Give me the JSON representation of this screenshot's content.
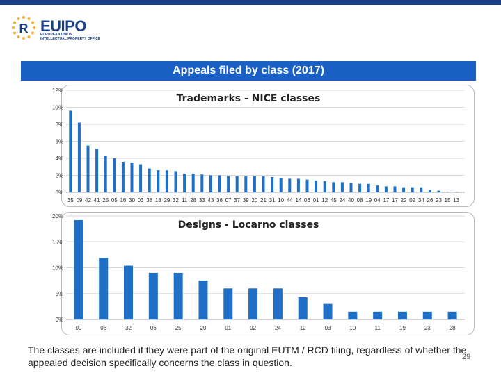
{
  "colors": {
    "bar": "#1f6fc6",
    "grid": "#d9d9d9",
    "title_band": "#1a5fc4",
    "brand": "#1b3f87"
  },
  "logo": {
    "icon": "euipo-star-circle-logo",
    "name": "EUIPO",
    "sub_line1": "EUROPEAN UNION",
    "sub_line2": "INTELLECTUAL PROPERTY OFFICE"
  },
  "slide_title": "Appeals filed by class (2017)",
  "chart_data": [
    {
      "type": "bar",
      "title": "Trademarks - NICE classes",
      "categories": [
        "35",
        "09",
        "42",
        "41",
        "25",
        "05",
        "16",
        "30",
        "03",
        "38",
        "18",
        "29",
        "32",
        "11",
        "28",
        "33",
        "43",
        "36",
        "07",
        "37",
        "39",
        "20",
        "21",
        "31",
        "10",
        "44",
        "14",
        "06",
        "01",
        "12",
        "45",
        "24",
        "40",
        "08",
        "19",
        "04",
        "17",
        "17",
        "22",
        "02",
        "34",
        "26",
        "23",
        "15",
        "13"
      ],
      "values": [
        9.6,
        8.2,
        5.5,
        5.1,
        4.3,
        4.0,
        3.6,
        3.5,
        3.3,
        2.8,
        2.6,
        2.6,
        2.5,
        2.2,
        2.2,
        2.1,
        2.0,
        2.0,
        1.9,
        1.9,
        1.9,
        1.9,
        1.9,
        1.8,
        1.7,
        1.6,
        1.6,
        1.5,
        1.4,
        1.3,
        1.2,
        1.2,
        1.1,
        1.0,
        1.0,
        0.8,
        0.7,
        0.7,
        0.6,
        0.6,
        0.6,
        0.3,
        0.2,
        0.05,
        0.05
      ],
      "ylim": [
        0,
        12
      ],
      "yticks": [
        "0%",
        "2%",
        "4%",
        "6%",
        "8%",
        "10%",
        "12%"
      ],
      "grid": true,
      "xlabel": "",
      "ylabel": ""
    },
    {
      "type": "bar",
      "title": "Designs - Locarno classes",
      "categories": [
        "09",
        "08",
        "32",
        "06",
        "25",
        "20",
        "01",
        "02",
        "24",
        "12",
        "03",
        "10",
        "11",
        "19",
        "23",
        "28"
      ],
      "values": [
        19.2,
        11.9,
        10.4,
        9.0,
        9.0,
        7.5,
        6.0,
        6.0,
        6.0,
        4.3,
        3.0,
        1.5,
        1.5,
        1.5,
        1.5,
        1.5
      ],
      "ylim": [
        0,
        20
      ],
      "yticks": [
        "0%",
        "5%",
        "10%",
        "15%",
        "20%"
      ],
      "grid": true,
      "xlabel": "",
      "ylabel": ""
    }
  ],
  "footer_note": "The classes are included if they were part of the original EUTM / RCD filing, regardless of whether the appealed decision specifically concerns the class in question.",
  "page_number": "29"
}
